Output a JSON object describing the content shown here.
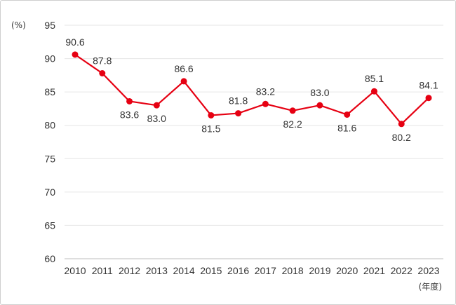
{
  "chart_data": {
    "type": "line",
    "ylabel": "(%)",
    "xlabel": "(年度)",
    "ylim": [
      60,
      95
    ],
    "yticks": [
      60,
      65,
      70,
      75,
      80,
      85,
      90,
      95
    ],
    "grid": true,
    "color": "#e60012",
    "categories": [
      "2010",
      "2011",
      "2012",
      "2013",
      "2014",
      "2015",
      "2016",
      "2017",
      "2018",
      "2019",
      "2020",
      "2021",
      "2022",
      "2023"
    ],
    "series": [
      {
        "values": [
          90.6,
          87.8,
          83.6,
          83.0,
          86.6,
          81.5,
          81.8,
          83.2,
          82.2,
          83.0,
          81.6,
          85.1,
          80.2,
          84.1
        ],
        "labels": [
          "90.6",
          "87.8",
          "83.6",
          "83.0",
          "86.6",
          "81.5",
          "81.8",
          "83.2",
          "82.2",
          "83.0",
          "81.6",
          "85.1",
          "80.2",
          "84.1"
        ],
        "label_pos": [
          "above",
          "above",
          "below",
          "below",
          "above",
          "below",
          "above",
          "above",
          "below",
          "above",
          "below",
          "above",
          "below",
          "above"
        ]
      }
    ]
  }
}
